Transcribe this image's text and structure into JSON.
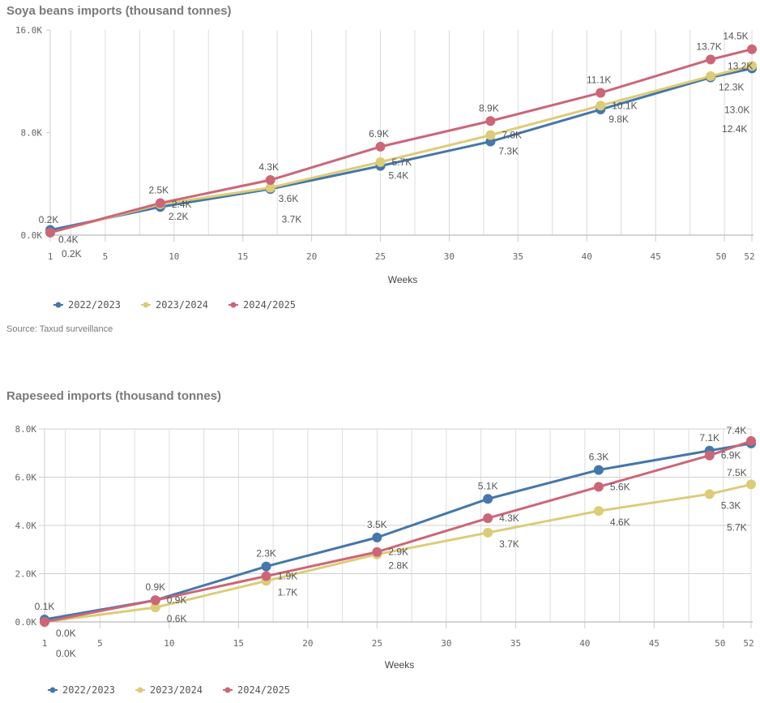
{
  "colors": {
    "2022/2023": "#4477aa",
    "2023/2024": "#ddcc77",
    "2024/2025": "#cc6677"
  },
  "source": "Source: Taxud surveillance",
  "chart_data": [
    {
      "type": "line",
      "title": "Soya beans imports (thousand tonnes)",
      "xlabel": "Weeks",
      "ylabel": "",
      "x": [
        1,
        9,
        17,
        25,
        33,
        41,
        49,
        52
      ],
      "xticks": [
        "1",
        "5",
        "10",
        "15",
        "20",
        "25",
        "30",
        "35",
        "40",
        "45",
        "50",
        "52"
      ],
      "xlim": [
        1,
        52
      ],
      "ylim": [
        0,
        16000
      ],
      "yticks": [
        "0.0K",
        "8.0K",
        "16.0K"
      ],
      "grid": "vertical",
      "legend": "bottom-left",
      "series": [
        {
          "name": "2022/2023",
          "values": [
            0.4,
            2.2,
            3.6,
            5.4,
            7.3,
            9.8,
            12.3,
            13.0
          ],
          "labels": [
            "0.4K",
            "2.2K",
            "3.6K",
            "5.4K",
            "7.3K",
            "9.8K",
            "12.3K",
            "13.0K"
          ]
        },
        {
          "name": "2023/2024",
          "values": [
            0.2,
            2.4,
            3.7,
            5.7,
            7.8,
            10.1,
            12.4,
            13.2
          ],
          "labels": [
            "0.2K",
            "2.4K",
            "3.7K",
            "5.7K",
            "7.8K",
            "10.1K",
            "12.4K",
            "13.2K"
          ]
        },
        {
          "name": "2024/2025",
          "values": [
            0.2,
            2.5,
            4.3,
            6.9,
            8.9,
            11.1,
            13.7,
            14.5
          ],
          "labels": [
            "0.2K",
            "2.5K",
            "4.3K",
            "6.9K",
            "8.9K",
            "11.1K",
            "13.7K",
            "14.5K"
          ]
        }
      ]
    },
    {
      "type": "line",
      "title": "Rapeseed imports (thousand tonnes)",
      "xlabel": "Weeks",
      "ylabel": "",
      "x": [
        1,
        9,
        17,
        25,
        33,
        41,
        49,
        52
      ],
      "xticks": [
        "1",
        "5",
        "10",
        "15",
        "20",
        "25",
        "30",
        "35",
        "40",
        "45",
        "50",
        "52"
      ],
      "xlim": [
        1,
        52
      ],
      "ylim": [
        0,
        8000
      ],
      "yticks": [
        "0.0K",
        "2.0K",
        "4.0K",
        "6.0K",
        "8.0K"
      ],
      "grid": "both",
      "legend": "bottom-left",
      "series": [
        {
          "name": "2022/2023",
          "values": [
            0.1,
            0.9,
            2.3,
            3.5,
            5.1,
            6.3,
            7.1,
            7.4
          ],
          "labels": [
            "0.1K",
            "0.9K",
            "2.3K",
            "3.5K",
            "5.1K",
            "6.3K",
            "7.1K",
            "7.4K"
          ]
        },
        {
          "name": "2023/2024",
          "values": [
            0.0,
            0.6,
            1.7,
            2.8,
            3.7,
            4.6,
            5.3,
            5.7
          ],
          "labels": [
            "0.0K",
            "0.6K",
            "1.7K",
            "2.8K",
            "3.7K",
            "4.6K",
            "5.3K",
            "5.7K"
          ]
        },
        {
          "name": "2024/2025",
          "values": [
            0.0,
            0.9,
            1.9,
            2.9,
            4.3,
            5.6,
            6.9,
            7.5
          ],
          "labels": [
            "0.0K",
            "0.9K",
            "1.9K",
            "2.9K",
            "4.3K",
            "5.6K",
            "6.9K",
            "7.5K"
          ]
        }
      ]
    }
  ]
}
